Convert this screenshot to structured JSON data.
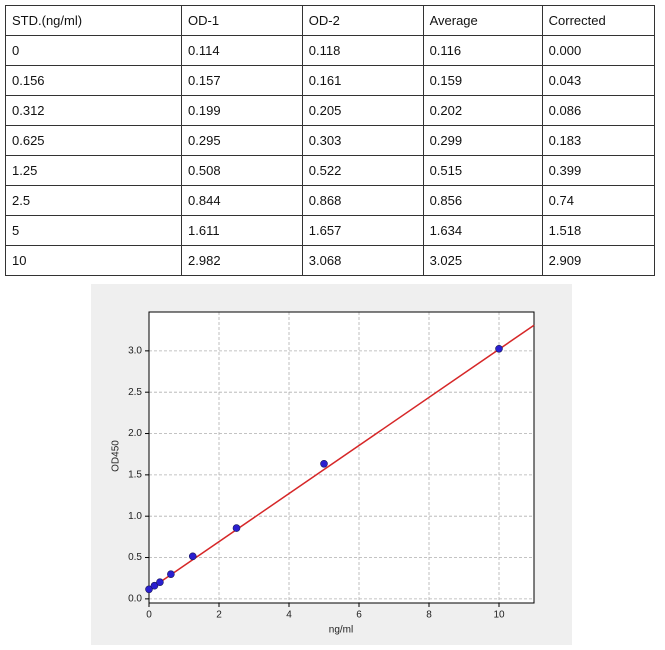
{
  "table": {
    "header": [
      "STD.(ng/ml)",
      "OD-1",
      "OD-2",
      "Average",
      "Corrected"
    ],
    "rows": [
      [
        "0",
        "0.114",
        "0.118",
        "0.116",
        "0.000"
      ],
      [
        "0.156",
        "0.157",
        "0.161",
        "0.159",
        "0.043"
      ],
      [
        "0.312",
        "0.199",
        "0.205",
        "0.202",
        "0.086"
      ],
      [
        "0.625",
        "0.295",
        "0.303",
        "0.299",
        "0.183"
      ],
      [
        "1.25",
        "0.508",
        "0.522",
        "0.515",
        "0.399"
      ],
      [
        "2.5",
        "0.844",
        "0.868",
        "0.856",
        "0.74"
      ],
      [
        "5",
        "1.611",
        "1.657",
        "1.634",
        "1.518"
      ],
      [
        "10",
        "2.982",
        "3.068",
        "3.025",
        "2.909"
      ]
    ]
  },
  "chart_data": {
    "type": "scatter",
    "x_label": "ng/ml",
    "y_label": "OD450",
    "x": [
      0,
      0.156,
      0.312,
      0.625,
      1.25,
      2.5,
      5,
      10
    ],
    "values": [
      0.116,
      0.159,
      0.202,
      0.299,
      0.515,
      0.856,
      1.634,
      3.025
    ],
    "color": "#2a1fd0",
    "fit_line": {
      "x": [
        0,
        11
      ],
      "values": [
        0.11,
        3.31
      ],
      "color": "#d62728"
    },
    "xlim": [
      0,
      11
    ],
    "ylim": [
      -0.05,
      3.47
    ],
    "xticks": [
      0,
      2,
      4,
      6,
      8,
      10
    ],
    "yticks": [
      {
        "value": 0,
        "label": "0.0"
      },
      {
        "value": 0.5,
        "label": "0.5"
      },
      {
        "value": 1,
        "label": "1.0"
      },
      {
        "value": 1.5,
        "label": "1.5"
      },
      {
        "value": 2,
        "label": "2.0"
      },
      {
        "value": 2.5,
        "label": "2.5"
      },
      {
        "value": 3,
        "label": "3.0"
      }
    ],
    "grid": true
  }
}
